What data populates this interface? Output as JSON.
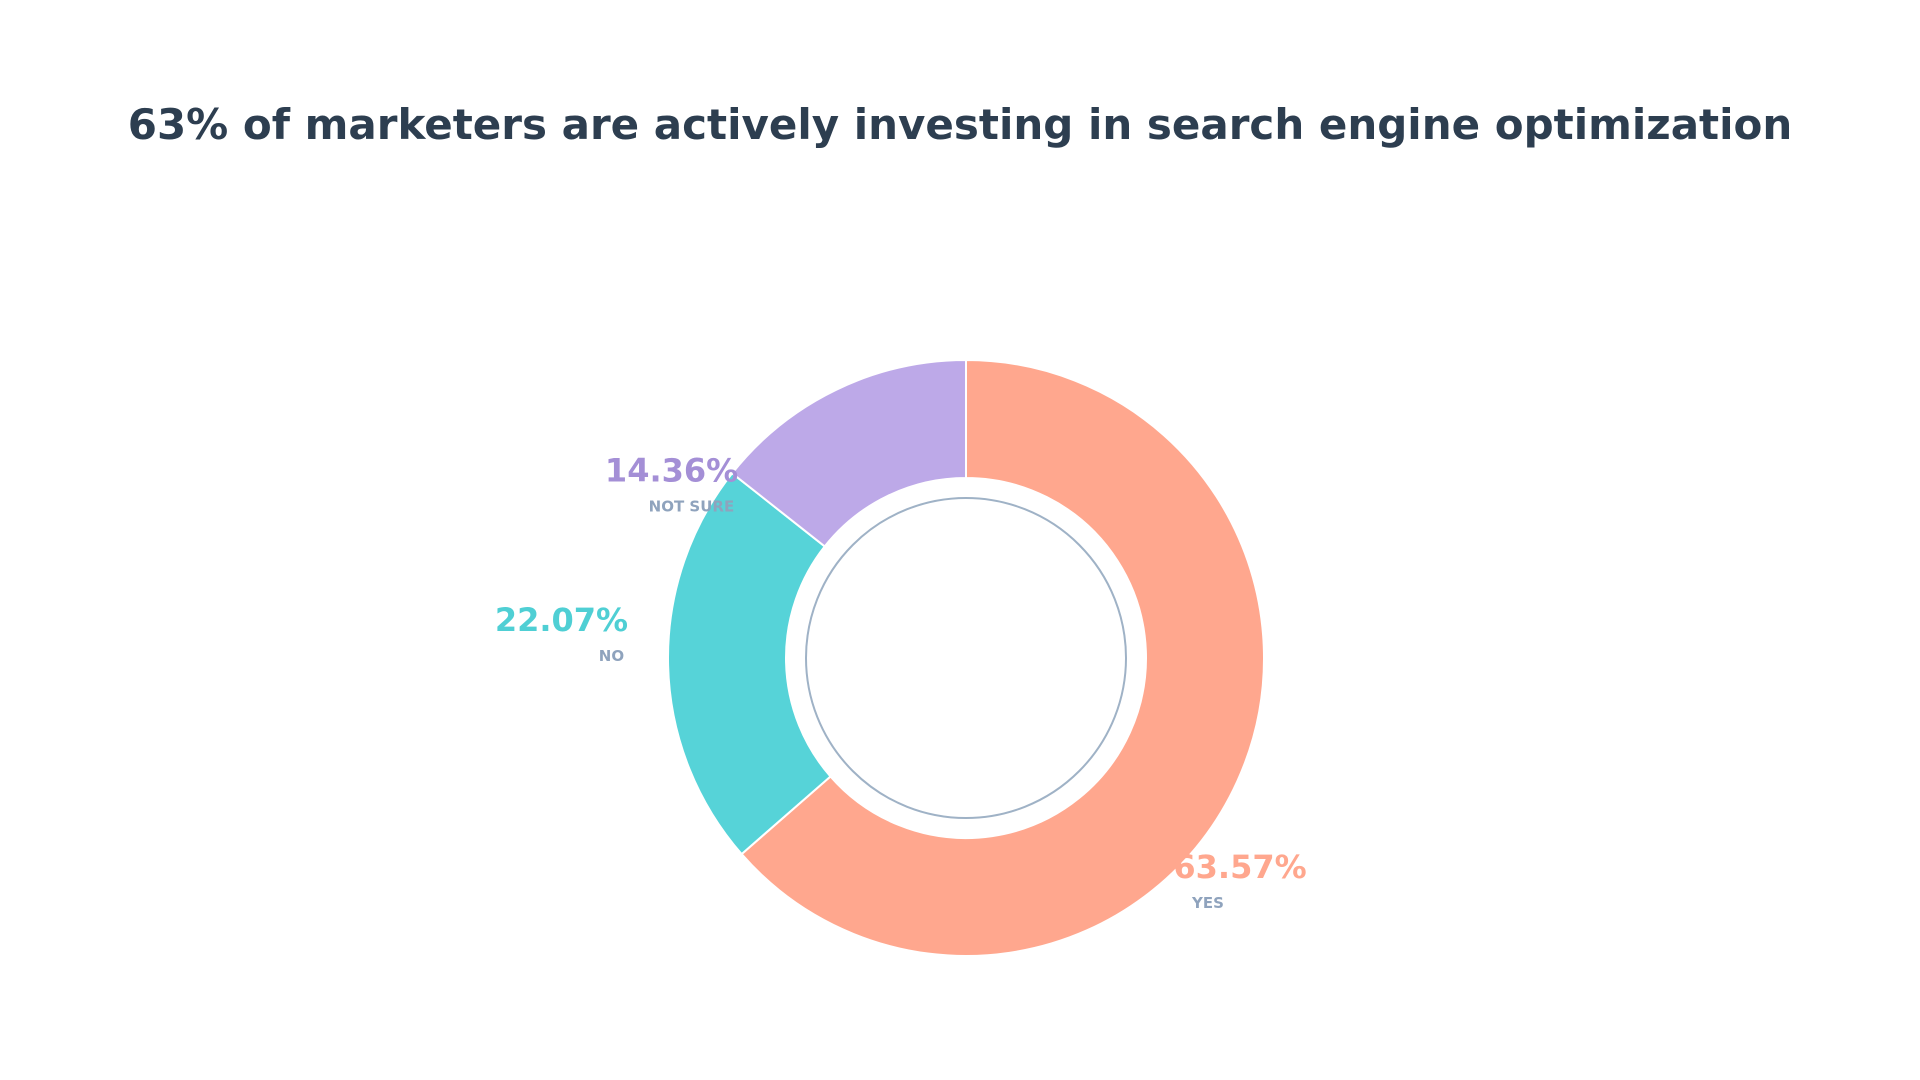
{
  "chart_data": {
    "type": "pie",
    "title": "63% of marketers are actively investing in search engine optimization",
    "slices": [
      {
        "label": "YES",
        "value": 63.57,
        "display": "63.57%",
        "color": "#ffa78e"
      },
      {
        "label": "NO",
        "value": 22.07,
        "display": "22.07%",
        "color": "#56d3d8"
      },
      {
        "label": "NOT SURE",
        "value": 14.36,
        "display": "14.36%",
        "color": "#bda9e8"
      }
    ],
    "start": "top",
    "direction": "clockwise",
    "legend": "none",
    "grid": false
  }
}
